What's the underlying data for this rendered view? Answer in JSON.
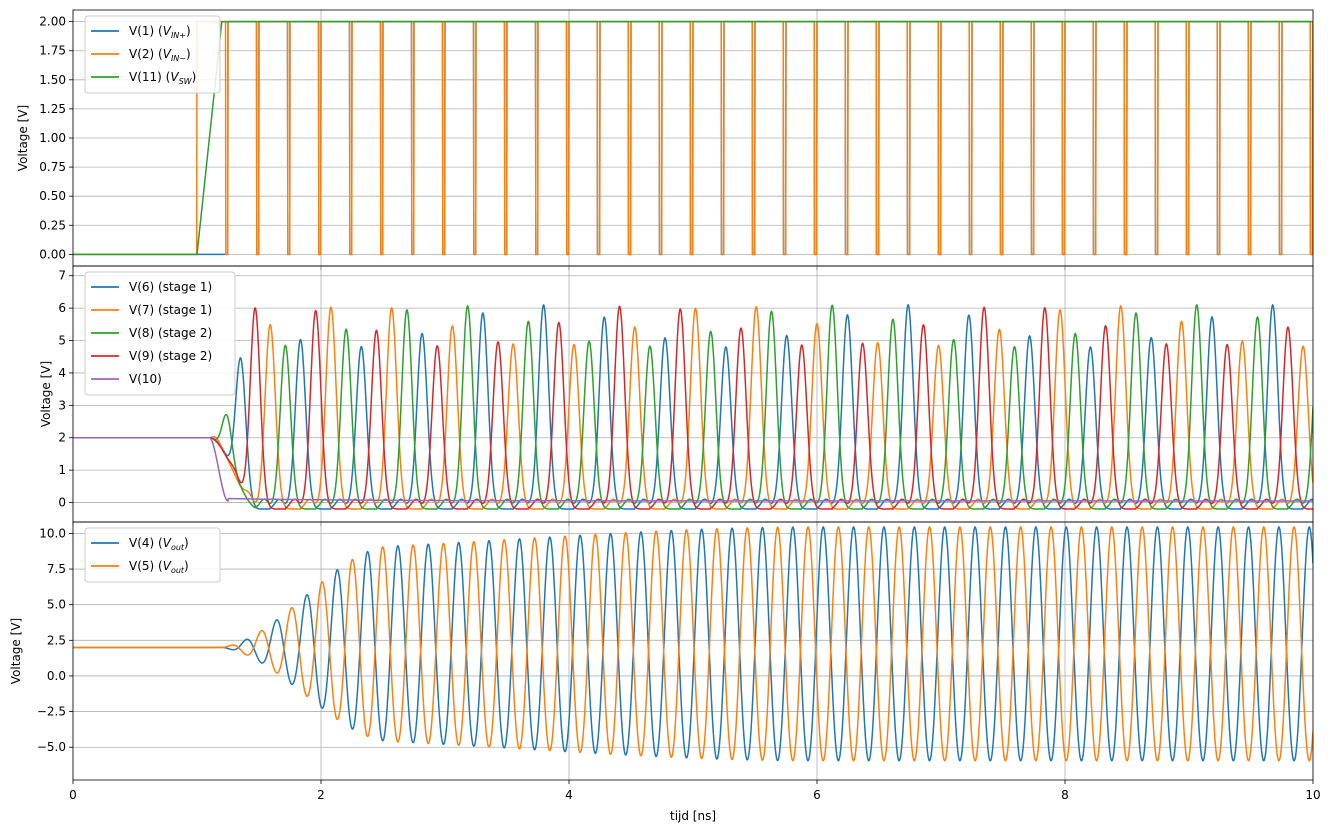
{
  "chart_data": [
    {
      "type": "line",
      "ylabel": "Voltage [V]",
      "xlabel": "",
      "xlim": [
        0,
        10
      ],
      "ylim": [
        -0.1,
        2.1
      ],
      "xticks": [
        0,
        2,
        4,
        6,
        8,
        10
      ],
      "yticks": [
        0.0,
        0.25,
        0.5,
        0.75,
        1.0,
        1.25,
        1.5,
        1.75,
        2.0
      ],
      "ytick_labels": [
        "0.00",
        "0.25",
        "0.50",
        "0.75",
        "1.00",
        "1.25",
        "1.50",
        "1.75",
        "2.00"
      ],
      "grid": true,
      "legend_position": "upper-left",
      "model": {
        "kind": "switch",
        "t_on": 1.0,
        "t_ramp": 0.2,
        "high": 2.0,
        "low": 0.0,
        "period": 0.25,
        "first_rise": 1.25,
        "pulse_width": 0.23
      },
      "series": [
        {
          "name": "V(1)",
          "tag": "V",
          "sub": "IN+",
          "color": "#1f77b4",
          "pattern": "in_plus"
        },
        {
          "name": "V(2)",
          "tag": "V",
          "sub": "IN−",
          "color": "#ff7f0e",
          "pattern": "in_minus"
        },
        {
          "name": "V(11)",
          "tag": "V",
          "sub": "SW",
          "color": "#2ca02c",
          "pattern": "sw"
        }
      ]
    },
    {
      "type": "line",
      "ylabel": "Voltage [V]",
      "xlabel": "",
      "xlim": [
        0,
        10
      ],
      "ylim": [
        -0.6,
        7.3
      ],
      "xticks": [
        0,
        2,
        4,
        6,
        8,
        10
      ],
      "yticks": [
        0,
        1,
        2,
        3,
        4,
        5,
        6,
        7
      ],
      "ytick_labels": [
        "0",
        "1",
        "2",
        "3",
        "4",
        "5",
        "6",
        "7"
      ],
      "grid": true,
      "legend_position": "upper-left",
      "model": {
        "kind": "stage",
        "t_start": 1.1,
        "dc": 2.0,
        "period": 0.49,
        "amplitude_range": [
          5.0,
          6.3
        ]
      },
      "series": [
        {
          "name": "V(6)",
          "label": "(stage 1)",
          "color": "#1f77b4",
          "phase": 0.0
        },
        {
          "name": "V(7)",
          "label": "(stage 1)",
          "color": "#ff7f0e",
          "phase": 0.5
        },
        {
          "name": "V(8)",
          "label": "(stage 2)",
          "color": "#2ca02c",
          "phase": 0.25
        },
        {
          "name": "V(9)",
          "label": "(stage 2)",
          "color": "#d62728",
          "phase": 0.75
        },
        {
          "name": "V(10)",
          "label": "",
          "color": "#9467bd",
          "phase": null
        }
      ]
    },
    {
      "type": "line",
      "ylabel": "Voltage [V]",
      "xlabel": "tijd [ns]",
      "xlim": [
        0,
        10
      ],
      "ylim": [
        -7.3,
        10.8
      ],
      "xticks": [
        0,
        2,
        4,
        6,
        8,
        10
      ],
      "xtick_labels": [
        "0",
        "2",
        "4",
        "6",
        "8",
        "10"
      ],
      "yticks": [
        -5.0,
        -2.5,
        0.0,
        2.5,
        5.0,
        7.5,
        10.0
      ],
      "ytick_labels": [
        "−5.0",
        "−2.5",
        "0.0",
        "2.5",
        "5.0",
        "7.5",
        "10.0"
      ],
      "grid": true,
      "legend_position": "upper-left",
      "model": {
        "kind": "output",
        "t_start": 1.15,
        "dc": 2.0,
        "period": 0.245,
        "peak_range": [
          6.5,
          8.2
        ]
      },
      "series": [
        {
          "name": "V(4)",
          "tag": "V",
          "sub": "out",
          "color": "#1f77b4",
          "phase": 0.0
        },
        {
          "name": "V(5)",
          "tag": "V",
          "sub": "out",
          "color": "#ff7f0e",
          "phase": 0.5
        }
      ]
    }
  ]
}
